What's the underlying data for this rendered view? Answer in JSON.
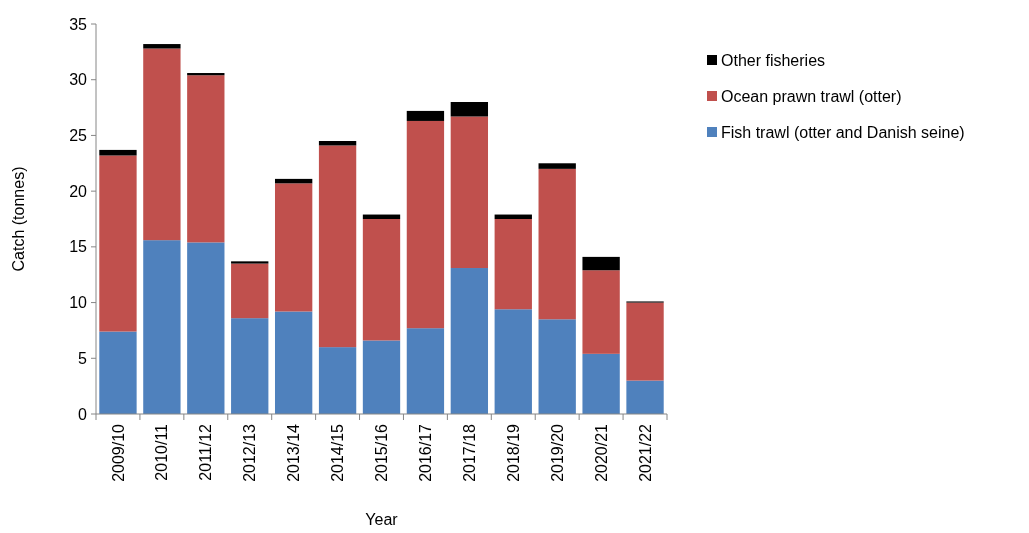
{
  "chart_data": {
    "type": "bar",
    "stacked": true,
    "xlabel": "Year",
    "ylabel": "Catch (tonnes)",
    "categories": [
      "2009/10",
      "2010/11",
      "2011/12",
      "2012/13",
      "2013/14",
      "2014/15",
      "2015/16",
      "2016/17",
      "2017/18",
      "2018/19",
      "2019/20",
      "2020/21",
      "2021/22"
    ],
    "series": [
      {
        "name": "Fish trawl (otter and Danish seine)",
        "color": "#4f81bd",
        "values": [
          7.4,
          15.6,
          15.4,
          8.6,
          9.2,
          6.0,
          6.6,
          7.7,
          13.1,
          9.4,
          8.5,
          5.4,
          3.0
        ]
      },
      {
        "name": "Ocean prawn trawl (otter)",
        "color": "#c0504d",
        "values": [
          15.8,
          17.2,
          15.0,
          4.9,
          11.5,
          18.1,
          10.9,
          18.6,
          13.6,
          8.1,
          13.5,
          7.5,
          7.0
        ]
      },
      {
        "name": "Other fisheries",
        "color": "#000000",
        "values": [
          0.5,
          0.4,
          0.2,
          0.2,
          0.4,
          0.4,
          0.4,
          0.9,
          1.3,
          0.4,
          0.5,
          1.2,
          0.1
        ]
      }
    ],
    "ylim": [
      0,
      35
    ],
    "yticks": [
      0,
      5,
      10,
      15,
      20,
      25,
      30,
      35
    ],
    "grid": false,
    "legend": "top right"
  }
}
